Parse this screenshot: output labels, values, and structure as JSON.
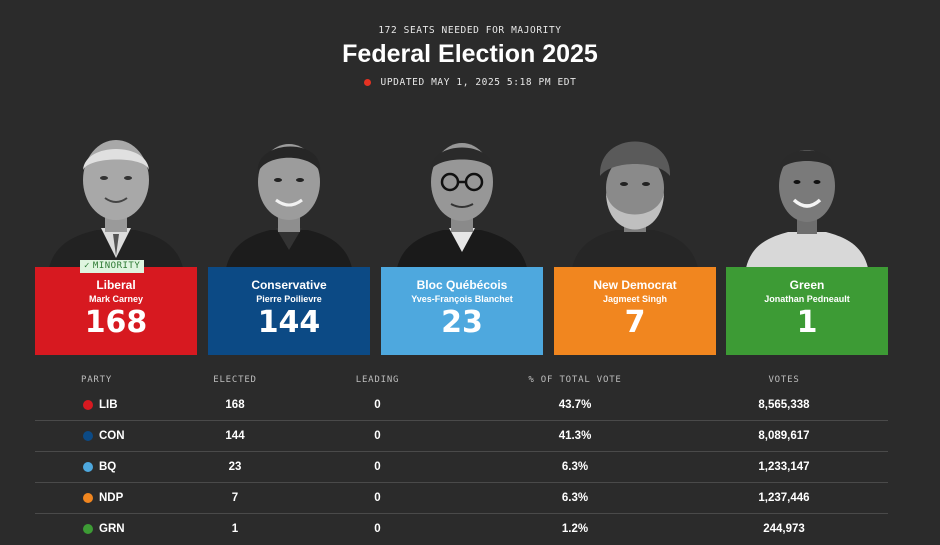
{
  "header": {
    "kicker": "172 SEATS NEEDED FOR MAJORITY",
    "title": "Federal Election 2025",
    "updated": "UPDATED MAY 1, 2025 5:18 PM EDT",
    "live_color": "#e53222"
  },
  "badge": {
    "icon": "checkmark-icon",
    "check": "✓",
    "label": "MINORITY"
  },
  "cards": [
    {
      "party": "Liberal",
      "leader": "Mark Carney",
      "seats": "168",
      "color": "#d71920"
    },
    {
      "party": "Conservative",
      "leader": "Pierre Poilievre",
      "seats": "144",
      "color": "#0c4a85"
    },
    {
      "party": "Bloc Québécois",
      "leader": "Yves-François Blanchet",
      "seats": "23",
      "color": "#4ea8de"
    },
    {
      "party": "New Democrat",
      "leader": "Jagmeet Singh",
      "seats": "7",
      "color": "#f1861f"
    },
    {
      "party": "Green",
      "leader": "Jonathan Pedneault",
      "seats": "1",
      "color": "#3d9b35"
    }
  ],
  "table": {
    "headers": {
      "party": "PARTY",
      "elected": "ELECTED",
      "leading": "LEADING",
      "vote_share": "% OF TOTAL VOTE",
      "votes": "VOTES"
    },
    "rows": [
      {
        "party": "LIB",
        "elected": "168",
        "leading": "0",
        "vote_share": "43.7%",
        "votes": "8,565,338",
        "color": "#d71920"
      },
      {
        "party": "CON",
        "elected": "144",
        "leading": "0",
        "vote_share": "41.3%",
        "votes": "8,089,617",
        "color": "#0c4a85"
      },
      {
        "party": "BQ",
        "elected": "23",
        "leading": "0",
        "vote_share": "6.3%",
        "votes": "1,233,147",
        "color": "#4ea8de"
      },
      {
        "party": "NDP",
        "elected": "7",
        "leading": "0",
        "vote_share": "6.3%",
        "votes": "1,237,446",
        "color": "#f1861f"
      },
      {
        "party": "GRN",
        "elected": "1",
        "leading": "0",
        "vote_share": "1.2%",
        "votes": "244,973",
        "color": "#3d9b35"
      }
    ]
  }
}
